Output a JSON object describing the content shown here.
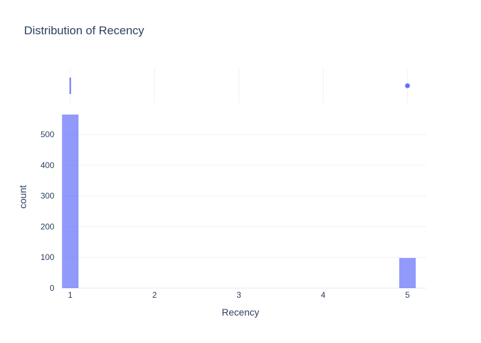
{
  "chart_data": {
    "type": "bar",
    "title": "Distribution of Recency",
    "xlabel": "Recency",
    "ylabel": "count",
    "x_ticks": [
      "1",
      "2",
      "3",
      "4",
      "5"
    ],
    "y_ticks": [
      "0",
      "100",
      "200",
      "300",
      "400",
      "500"
    ],
    "xlim": [
      0.9,
      5.22
    ],
    "ylim": [
      0,
      565
    ],
    "grid": true,
    "bar_color": "#636efa",
    "bars": [
      {
        "x": 1,
        "value": 565
      },
      {
        "x": 5,
        "value": 98
      }
    ],
    "marginal": {
      "type": "box",
      "color": "#636efa",
      "line_x": 1,
      "outlier_x": 5
    }
  }
}
